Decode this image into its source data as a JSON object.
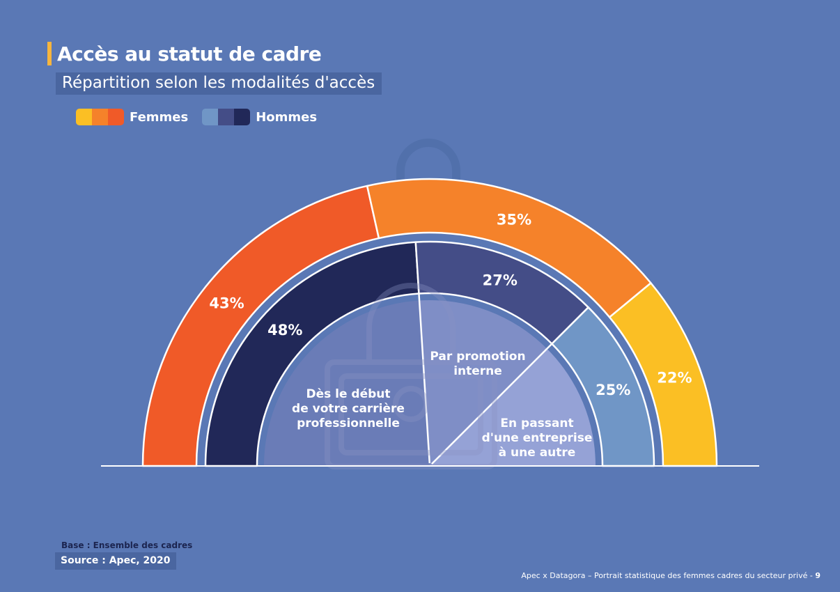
{
  "header": {
    "title": "Accès au statut de cadre",
    "subtitle": "Répartition selon les modalités d'accès"
  },
  "legend": {
    "women_label": "Femmes",
    "men_label": "Hommes",
    "women_colors": [
      "#fbbf24",
      "#f5822a",
      "#f05a28"
    ],
    "men_colors": [
      "#7096c6",
      "#444d87",
      "#212858"
    ]
  },
  "chart_data": {
    "type": "pie",
    "shape": "semi-donut",
    "categories": [
      [
        "Dès le début",
        "de votre carrière",
        "professionnelle"
      ],
      [
        "Par promotion",
        "interne"
      ],
      [
        "En passant",
        "d'une entreprise",
        "à une autre"
      ]
    ],
    "series": [
      {
        "name": "Femmes",
        "values": [
          43,
          35,
          22
        ],
        "labels": [
          "43%",
          "35%",
          "22%"
        ],
        "colors": [
          "#f05a28",
          "#f5822a",
          "#fbbf24"
        ]
      },
      {
        "name": "Hommes",
        "values": [
          48,
          27,
          25
        ],
        "labels": [
          "48%",
          "27%",
          "25%"
        ],
        "colors": [
          "#212858",
          "#444d87",
          "#7096c6"
        ]
      }
    ]
  },
  "footer": {
    "base": "Base : Ensemble des cadres",
    "source": "Source : Apec, 2020",
    "credit": "Apec x Datagora – Portrait statistique des femmes cadres du secteur privé - ",
    "page": "9"
  }
}
